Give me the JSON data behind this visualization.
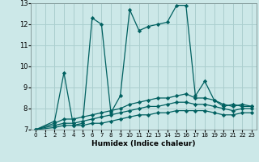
{
  "background_color": "#cce8e8",
  "grid_color": "#aacece",
  "line_color": "#006060",
  "xlabel": "Humidex (Indice chaleur)",
  "ylim": [
    7,
    13
  ],
  "xlim": [
    -0.5,
    23.5
  ],
  "yticks": [
    7,
    8,
    9,
    10,
    11,
    12,
    13
  ],
  "xticks": [
    0,
    1,
    2,
    3,
    4,
    5,
    6,
    7,
    8,
    9,
    10,
    11,
    12,
    13,
    14,
    15,
    16,
    17,
    18,
    19,
    20,
    21,
    22,
    23
  ],
  "series": [
    {
      "x": [
        0,
        2,
        3,
        4,
        5,
        6,
        7,
        8,
        9,
        10,
        11,
        12,
        13,
        14,
        15,
        16,
        17,
        18,
        19,
        20,
        21,
        22,
        23
      ],
      "y": [
        7,
        7.4,
        9.7,
        7.2,
        7.3,
        12.3,
        12.0,
        7.8,
        8.6,
        12.7,
        11.7,
        11.9,
        12.0,
        12.1,
        12.9,
        12.9,
        8.6,
        9.3,
        8.4,
        8.1,
        8.2,
        8.1,
        8.1
      ]
    },
    {
      "x": [
        0,
        2,
        3,
        4,
        5,
        6,
        7,
        8,
        9,
        10,
        11,
        12,
        13,
        14,
        15,
        16,
        17,
        18,
        19,
        20,
        21,
        22,
        23
      ],
      "y": [
        7,
        7.3,
        7.5,
        7.5,
        7.6,
        7.7,
        7.8,
        7.9,
        8.0,
        8.2,
        8.3,
        8.4,
        8.5,
        8.5,
        8.6,
        8.7,
        8.5,
        8.5,
        8.4,
        8.2,
        8.1,
        8.2,
        8.1
      ]
    },
    {
      "x": [
        0,
        2,
        3,
        4,
        5,
        6,
        7,
        8,
        9,
        10,
        11,
        12,
        13,
        14,
        15,
        16,
        17,
        18,
        19,
        20,
        21,
        22,
        23
      ],
      "y": [
        7,
        7.2,
        7.3,
        7.3,
        7.4,
        7.5,
        7.6,
        7.7,
        7.8,
        7.9,
        8.0,
        8.1,
        8.1,
        8.2,
        8.3,
        8.3,
        8.2,
        8.2,
        8.1,
        8.0,
        7.9,
        8.0,
        8.0
      ]
    },
    {
      "x": [
        0,
        2,
        3,
        4,
        5,
        6,
        7,
        8,
        9,
        10,
        11,
        12,
        13,
        14,
        15,
        16,
        17,
        18,
        19,
        20,
        21,
        22,
        23
      ],
      "y": [
        7,
        7.1,
        7.2,
        7.2,
        7.2,
        7.3,
        7.3,
        7.4,
        7.5,
        7.6,
        7.7,
        7.7,
        7.8,
        7.8,
        7.9,
        7.9,
        7.9,
        7.9,
        7.8,
        7.7,
        7.7,
        7.8,
        7.8
      ]
    }
  ]
}
